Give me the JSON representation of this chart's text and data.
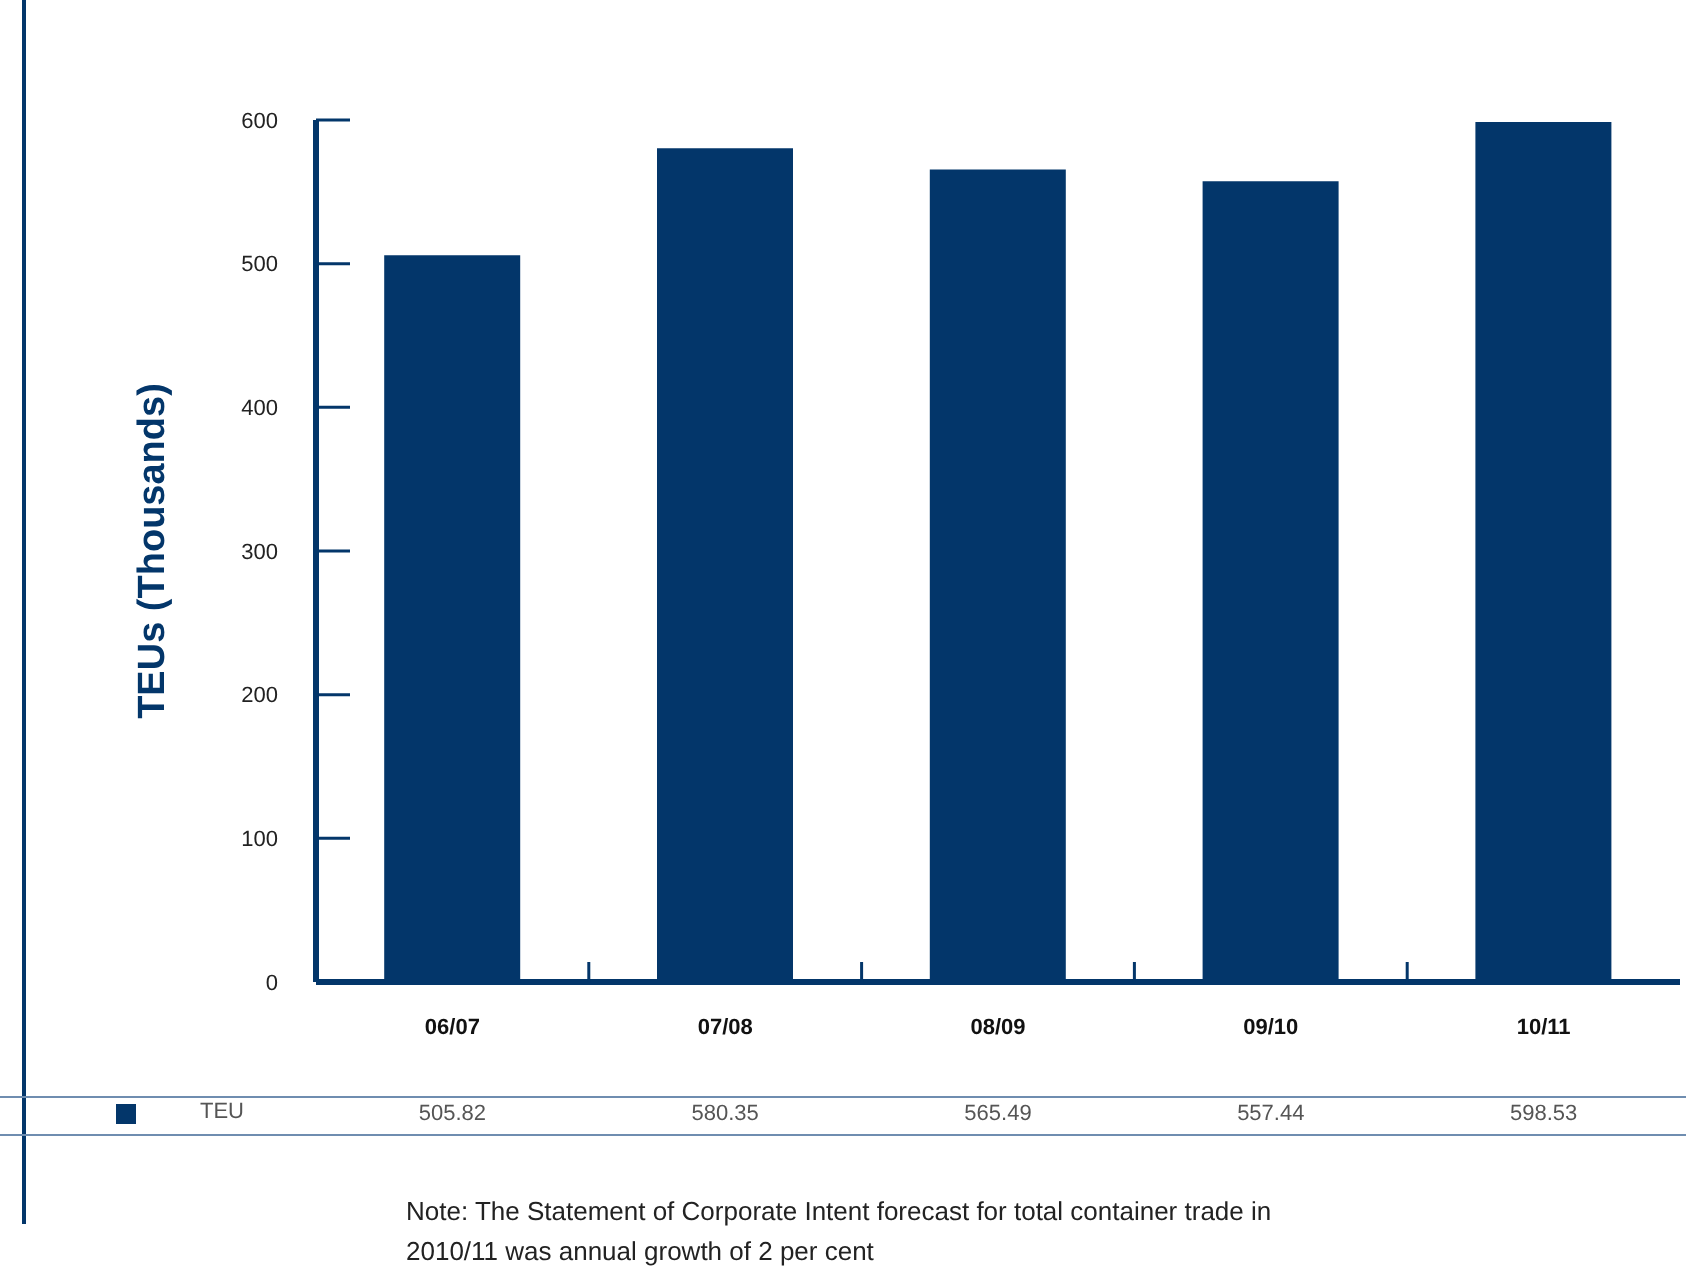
{
  "chart_data": {
    "type": "bar",
    "categories": [
      "06/07",
      "07/08",
      "08/09",
      "09/10",
      "10/11"
    ],
    "series": [
      {
        "name": "TEU",
        "color": "#03366a",
        "values": [
          505.82,
          580.35,
          565.49,
          557.44,
          598.53
        ]
      }
    ],
    "ylabel": "TEUs (Thousands)",
    "ylim": [
      0,
      600
    ],
    "yticks": [
      0,
      100,
      200,
      300,
      400,
      500,
      600
    ],
    "data_labels": true,
    "legend": "bottom",
    "annotations": [
      "Note: The Statement of Corporate Intent forecast for total container trade in 2010/11 was annual growth of 2 per cent"
    ]
  }
}
